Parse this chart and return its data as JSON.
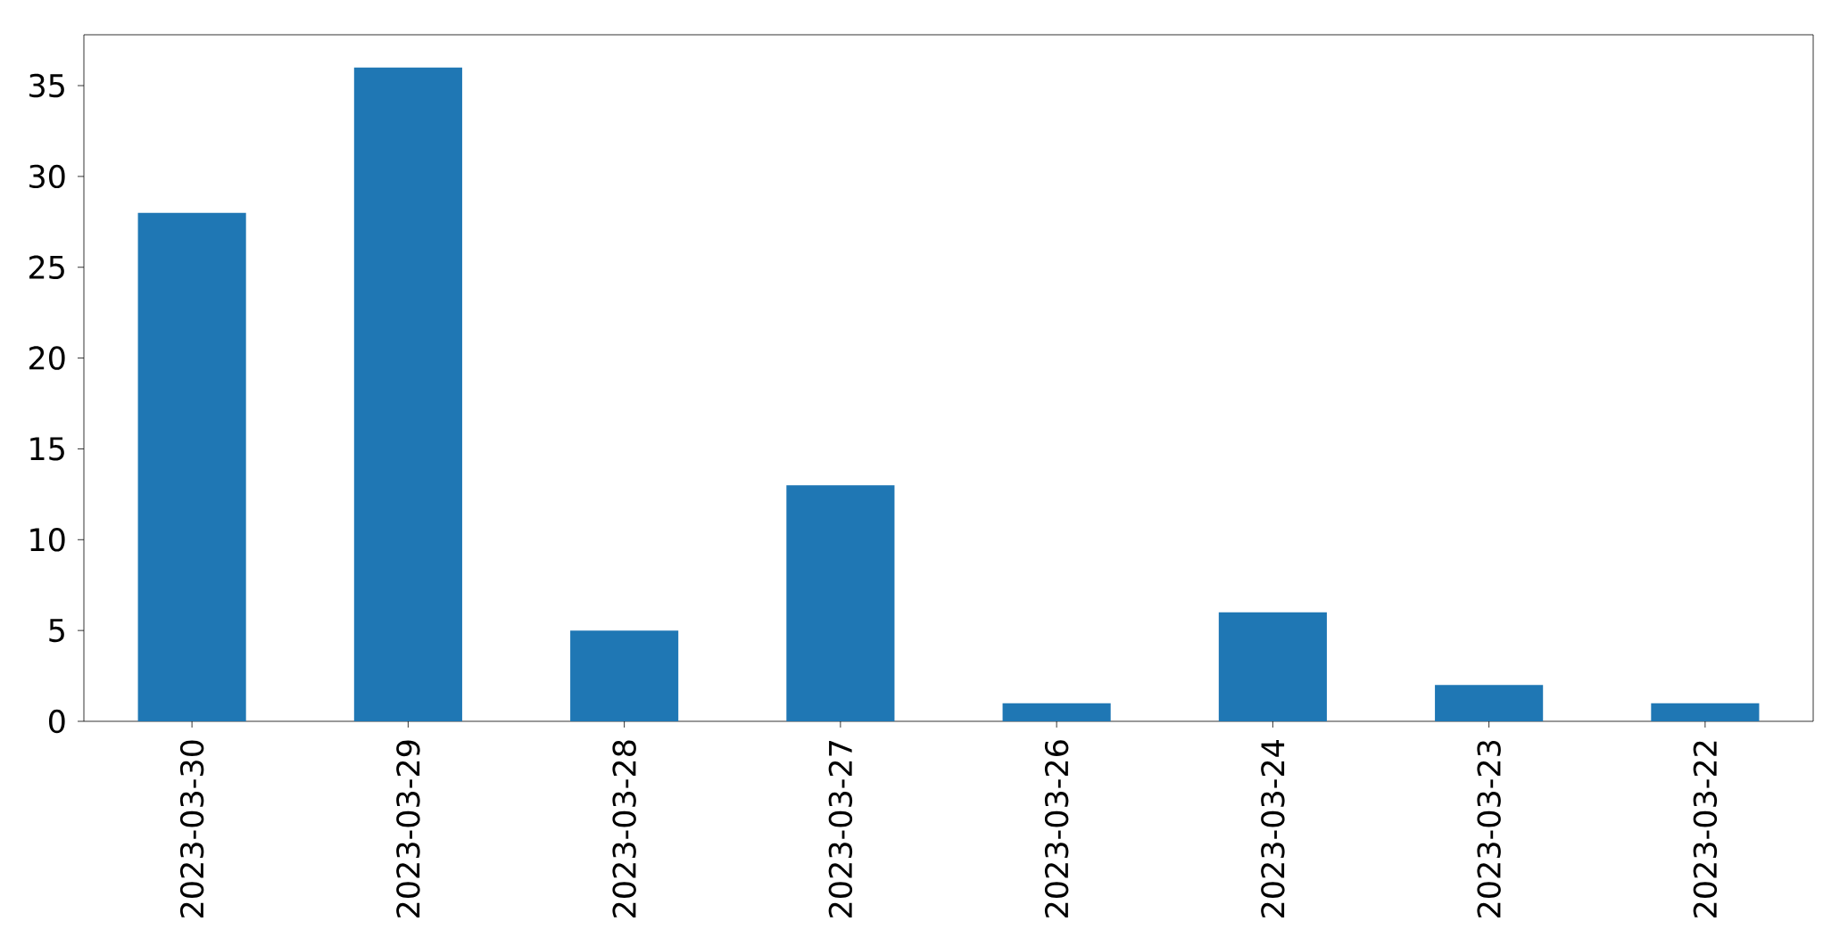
{
  "chart_data": {
    "type": "bar",
    "categories": [
      "2023-03-30",
      "2023-03-29",
      "2023-03-28",
      "2023-03-27",
      "2023-03-26",
      "2023-03-24",
      "2023-03-23",
      "2023-03-22"
    ],
    "values": [
      28,
      36,
      5,
      13,
      1,
      6,
      2,
      1
    ],
    "color": "#1f77b4",
    "ylim": [
      0,
      37.8
    ],
    "yticks": [
      0,
      5,
      10,
      15,
      20,
      25,
      30,
      35
    ]
  }
}
